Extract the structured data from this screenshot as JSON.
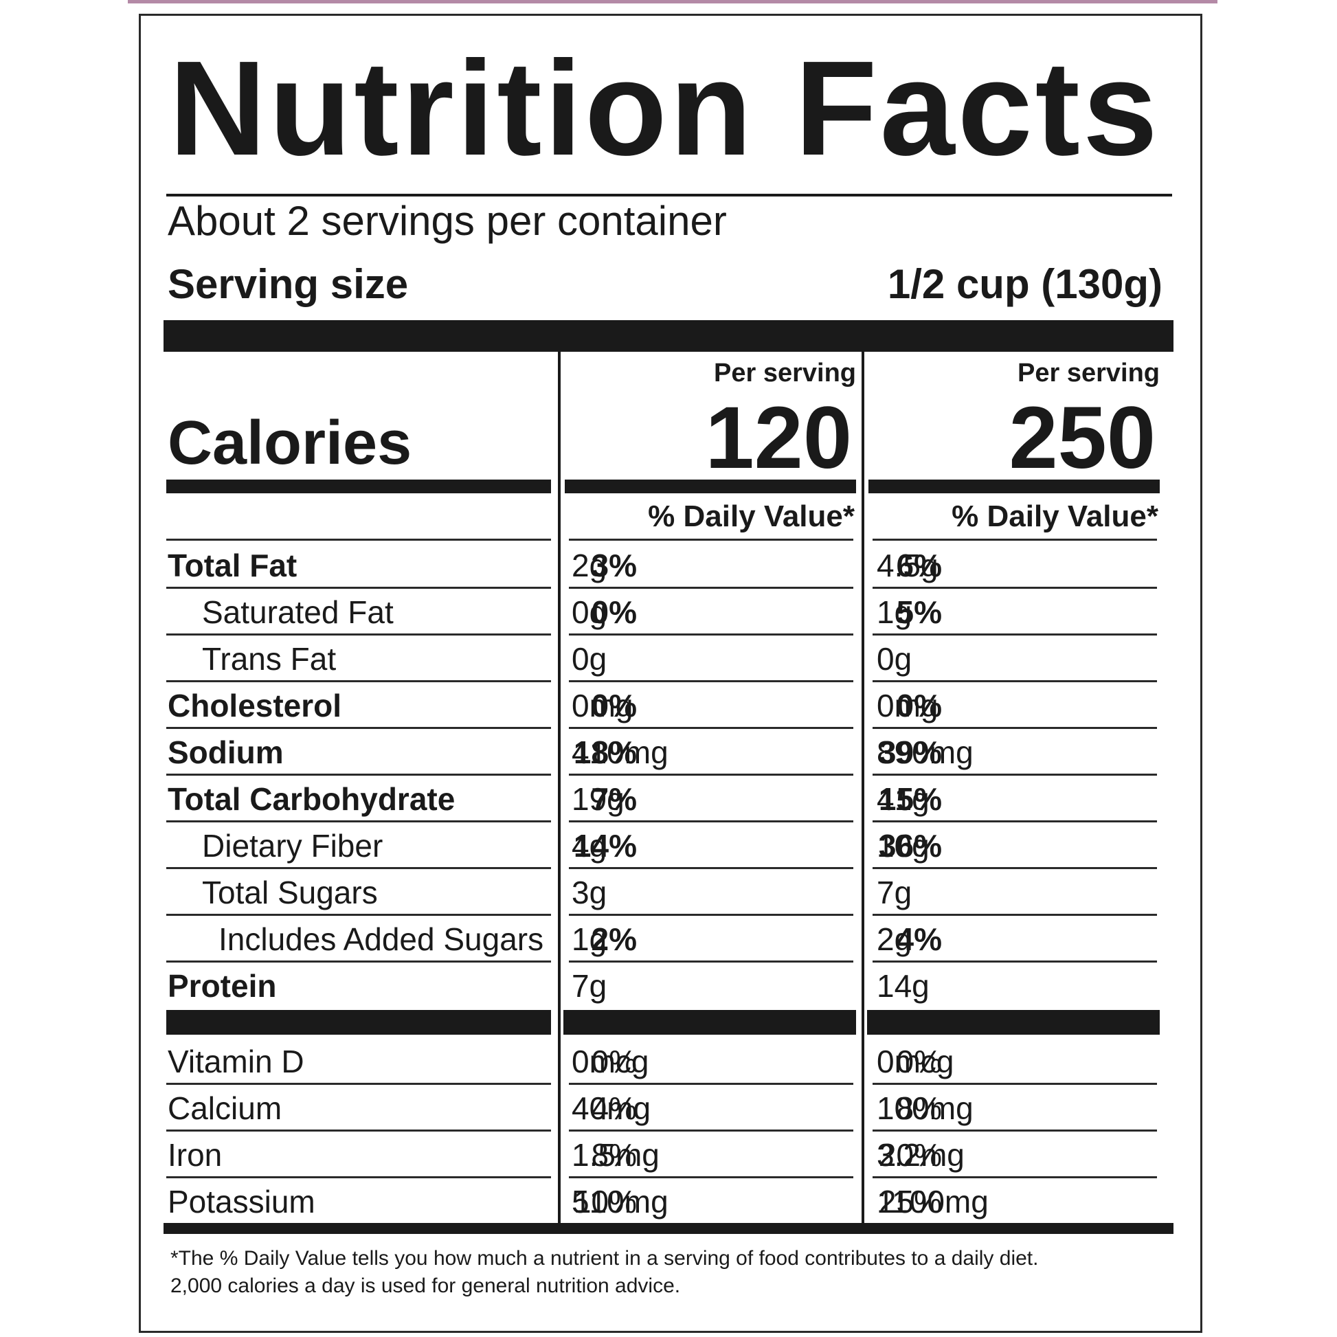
{
  "label": {
    "title": "Nutrition Facts",
    "servings_per_container": "About 2 servings per container",
    "serving_size_label": "Serving size",
    "serving_size_value": "1/2 cup (130g)",
    "calories_label": "Calories",
    "columns": [
      {
        "header": "Per serving",
        "calories": "120",
        "dv_header": "% Daily Value*"
      },
      {
        "header": "Per serving",
        "calories": "250",
        "dv_header": "% Daily Value*"
      }
    ],
    "nutrients": [
      {
        "name": "Total Fat",
        "a1": "2g",
        "p1": "3%",
        "a2": "4.5g",
        "p2": "6%"
      },
      {
        "name": "Saturated Fat",
        "a1": "0g",
        "p1": "0%",
        "a2": "1g",
        "p2": "5%"
      },
      {
        "name": "Trans Fat",
        "a1": "0g",
        "p1": "",
        "a2": "0g",
        "p2": ""
      },
      {
        "name": "Cholesterol",
        "a1": "0mg",
        "p1": "0%",
        "a2": "0mg",
        "p2": "0%"
      },
      {
        "name": "Sodium",
        "a1": "410mg",
        "p1": "18%",
        "a2": "890mg",
        "p2": "39%"
      },
      {
        "name": "Total Carbohydrate",
        "a1": "19g",
        "p1": "7%",
        "a2": "41g",
        "p2": "15%"
      },
      {
        "name": "Dietary Fiber",
        "a1": "4g",
        "p1": "14%",
        "a2": "10g",
        "p2": "36%"
      },
      {
        "name": "Total Sugars",
        "a1": "3g",
        "p1": "",
        "a2": "7g",
        "p2": ""
      },
      {
        "name": "Includes Added Sugars",
        "a1": "1g",
        "p1": "2%",
        "a2": "2g",
        "p2": "4%"
      },
      {
        "name": "Protein",
        "a1": "7g",
        "p1": "",
        "a2": "14g",
        "p2": ""
      }
    ],
    "vitamins": [
      {
        "name": "Vitamin D",
        "a1": "0mcg",
        "p1": "0%",
        "a2": "0mcg",
        "p2": "0%"
      },
      {
        "name": "Calcium",
        "a1": "40mg",
        "p1": "4%",
        "a2": "100mg",
        "p2": "8%"
      },
      {
        "name": "Iron",
        "a1": "1.5mg",
        "p1": "8%",
        "a2": "3.2mg",
        "p2": "20%"
      },
      {
        "name": "Potassium",
        "a1": "510mg",
        "p1": "10%",
        "a2": "1100mg",
        "p2": "25%"
      }
    ],
    "footnote_line1": "*The % Daily Value tells you how much a nutrient in a serving of food contributes to a daily diet.",
    "footnote_line2": "2,000 calories a day is used for general nutrition advice."
  }
}
